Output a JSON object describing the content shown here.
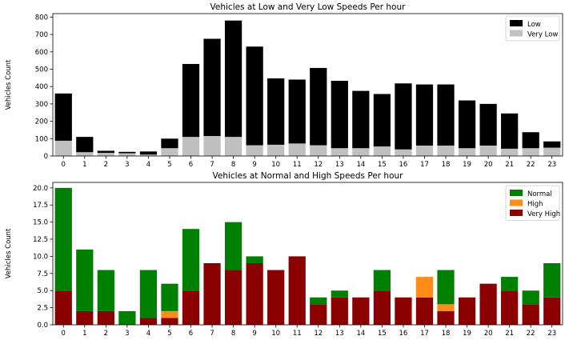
{
  "chart_data": [
    {
      "type": "bar",
      "stacked": true,
      "title": "Vehicles at Low and Very Low Speeds Per hour",
      "xlabel": "",
      "ylabel": "Vehicles Count",
      "categories": [
        "0",
        "1",
        "2",
        "3",
        "4",
        "5",
        "6",
        "7",
        "8",
        "9",
        "10",
        "11",
        "12",
        "13",
        "14",
        "15",
        "16",
        "17",
        "18",
        "19",
        "20",
        "21",
        "22",
        "23"
      ],
      "ylim": [
        0,
        820
      ],
      "yticks": [
        0,
        100,
        200,
        300,
        400,
        500,
        600,
        700,
        800
      ],
      "ytick_labels": [
        "0",
        "100",
        "200",
        "300",
        "400",
        "500",
        "600",
        "700",
        "800"
      ],
      "legend_position": "top-right",
      "series": [
        {
          "name": "Very Low",
          "color": "#c0c0c0",
          "values": [
            88,
            22,
            18,
            16,
            8,
            45,
            110,
            115,
            110,
            62,
            65,
            72,
            62,
            45,
            45,
            55,
            38,
            60,
            60,
            45,
            60,
            42,
            45,
            48
          ]
        },
        {
          "name": "Low",
          "color": "#000000",
          "values": [
            272,
            88,
            12,
            8,
            18,
            55,
            420,
            560,
            670,
            568,
            382,
            368,
            445,
            388,
            330,
            302,
            380,
            352,
            352,
            275,
            240,
            203,
            92,
            36
          ]
        }
      ],
      "legend_order": [
        "Low",
        "Very Low"
      ]
    },
    {
      "type": "bar",
      "stacked": true,
      "title": "Vehicles at Normal and High Speeds Per hour",
      "xlabel": "",
      "ylabel": "Vehicles Count",
      "categories": [
        "0",
        "1",
        "2",
        "3",
        "4",
        "5",
        "6",
        "7",
        "8",
        "9",
        "10",
        "11",
        "12",
        "13",
        "14",
        "15",
        "16",
        "17",
        "18",
        "19",
        "20",
        "21",
        "22",
        "23"
      ],
      "ylim": [
        0,
        20.8
      ],
      "yticks": [
        0,
        2.5,
        5,
        7.5,
        10,
        12.5,
        15,
        17.5,
        20
      ],
      "ytick_labels": [
        "0.0",
        "2.5",
        "5.0",
        "7.5",
        "10.0",
        "12.5",
        "15.0",
        "17.5",
        "20.0"
      ],
      "legend_position": "top-right",
      "series": [
        {
          "name": "Very High",
          "color": "#8b0000",
          "values": [
            5,
            2,
            2,
            0,
            1,
            1,
            5,
            9,
            8,
            9,
            8,
            10,
            3,
            4,
            4,
            5,
            4,
            4,
            2,
            4,
            6,
            5,
            3,
            4
          ]
        },
        {
          "name": "High",
          "color": "#ff8c1a",
          "values": [
            0,
            0,
            0,
            0,
            0,
            1,
            0,
            0,
            0,
            0,
            0,
            0,
            0,
            0,
            0,
            0,
            0,
            3,
            1,
            0,
            0,
            0,
            0,
            0
          ]
        },
        {
          "name": "Normal",
          "color": "#008000",
          "values": [
            15,
            9,
            6,
            2,
            7,
            4,
            9,
            0,
            7,
            1,
            0,
            0,
            1,
            1,
            0,
            3,
            0,
            0,
            5,
            0,
            0,
            2,
            2,
            5
          ]
        }
      ],
      "legend_order": [
        "Normal",
        "High",
        "Very High"
      ]
    }
  ]
}
